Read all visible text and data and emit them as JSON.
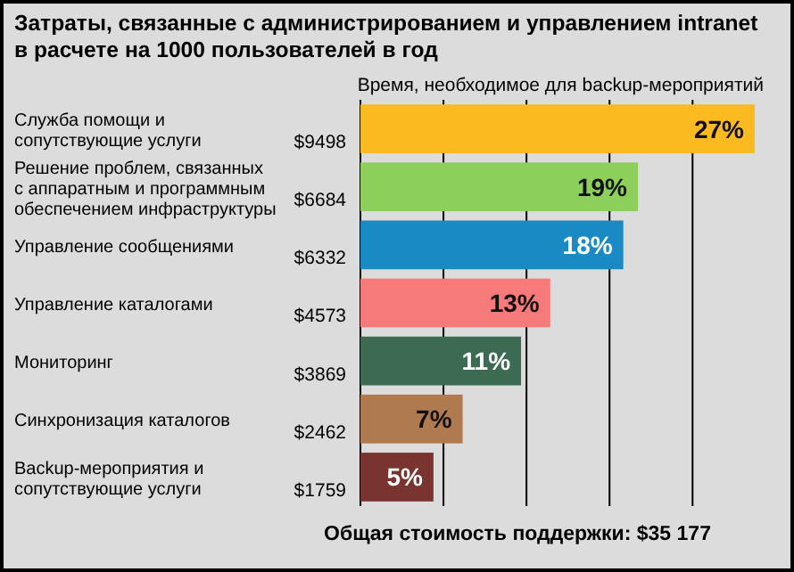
{
  "chart_data": {
    "type": "bar",
    "orientation": "horizontal",
    "title": "Затраты, связанные с администрированием и управлением intranet в расчете на 1000 пользователей в год",
    "subtitle": "Время, необходимое для backup-мероприятий",
    "categories": [
      "Служба помощи и сопутствующие услуги",
      "Решение проблем, связанных с аппаратным и программным обеспечением инфраструктуры",
      "Управление сообщениями",
      "Управление каталогами",
      "Мониторинг",
      "Синхронизация каталогов",
      "Backup-мероприятия и сопутствующие услуги"
    ],
    "values": [
      9498,
      6684,
      6332,
      4573,
      3869,
      2462,
      1759
    ],
    "value_labels": [
      "$9498",
      "$6684",
      "$6332",
      "$4573",
      "$3869",
      "$2462",
      "$1759"
    ],
    "colors": [
      "#fbbb20",
      "#8ccf5a",
      "#1a8ac4",
      "#f77a7a",
      "#3d6a52",
      "#b07a50",
      "#7a3430"
    ],
    "xticks": [
      {
        "value": 2000,
        "label": null
      },
      {
        "value": 4000,
        "label": null
      },
      {
        "value": 6000,
        "label": null
      },
      {
        "value": 8000,
        "label": null
      }
    ],
    "grid": "x",
    "tick_labels": "y",
    "annotations": [
      {
        "text": "27%",
        "x": 9498,
        "y": "Служба помощи и сопутствующие услуги"
      },
      {
        "text": "19%",
        "x": 6684,
        "y": "Решение проблем, связанных с аппаратным и программным обеспечением инфраструктуры"
      },
      {
        "text": "18%",
        "x": 6332,
        "y": "Управление сообщениями"
      },
      {
        "text": "13%",
        "x": 4573,
        "y": "Управление каталогами"
      },
      {
        "text": "11%",
        "x": 3869,
        "y": "Мониторинг"
      },
      {
        "text": "7%",
        "x": 2462,
        "y": "Синхронизация каталогов"
      },
      {
        "text": "5%",
        "x": 1759,
        "y": "Backup-мероприятия и сопутствующие услуги"
      },
      "Общая стоимость поддержки: $35 177"
    ]
  }
}
